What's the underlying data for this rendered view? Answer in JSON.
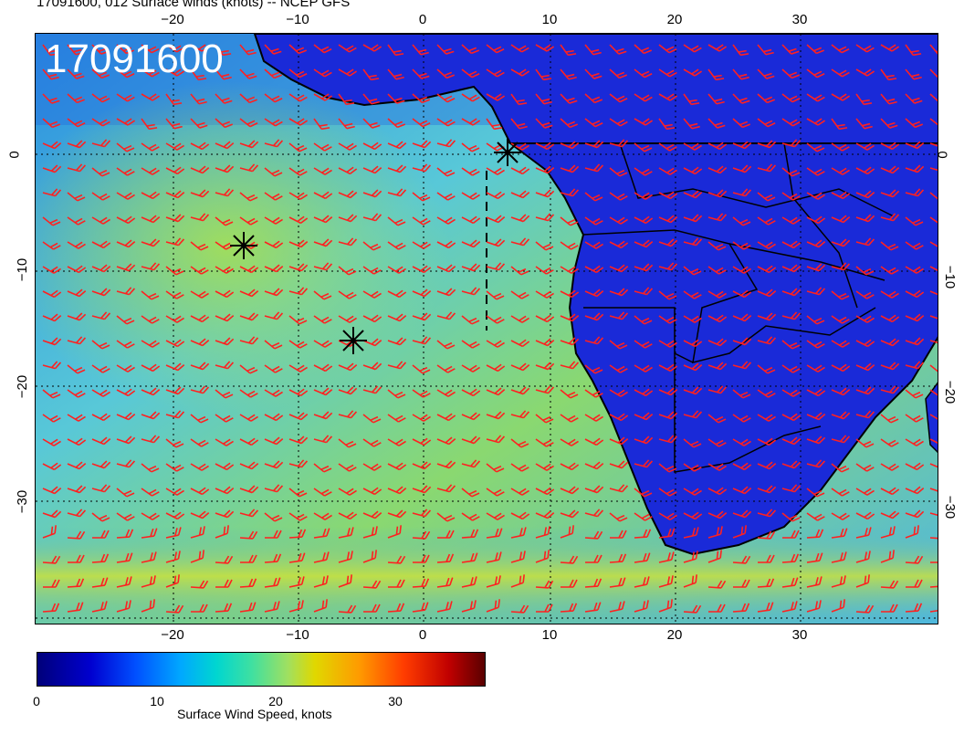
{
  "header": {
    "title": "17091600, 012 Surface winds (knots) -- NCEP GFS"
  },
  "stamp": "17091600",
  "axes": {
    "lon_ticks": [
      "−20",
      "−10",
      "0",
      "10",
      "20",
      "30"
    ],
    "lat_ticks": [
      "0",
      "−10",
      "−20",
      "−30"
    ]
  },
  "colorbar": {
    "ticks": [
      "0",
      "10",
      "20",
      "30"
    ],
    "label": "Surface Wind Speed, knots",
    "colors": [
      "#00007a",
      "#0000d0",
      "#0050ff",
      "#00a8ff",
      "#00d6d0",
      "#40e0a0",
      "#a0e060",
      "#e0d800",
      "#ff9a00",
      "#ff3c00",
      "#c00000",
      "#5a0000"
    ]
  },
  "map": {
    "ocean_colors": [
      "#2ea8e0",
      "#58c8d8",
      "#8ad870",
      "#c8e040"
    ],
    "land_color": "#1a2ad8",
    "barb_color": "#ff2020",
    "markers": [
      "asterisk",
      "asterisk",
      "asterisk"
    ]
  }
}
